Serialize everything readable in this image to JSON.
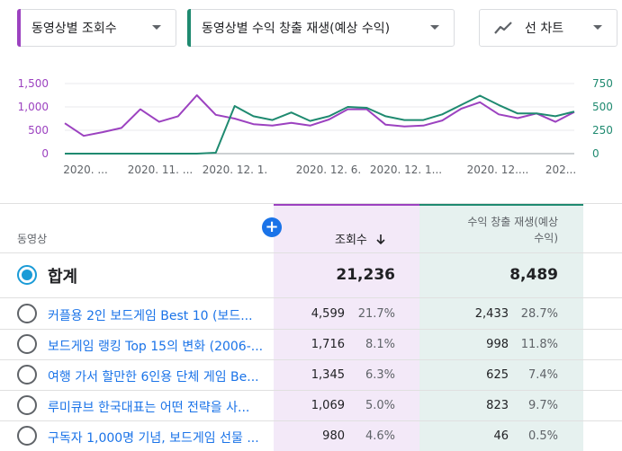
{
  "dropdowns": {
    "metric1": {
      "label": "동영상별 조회수",
      "color": "#9c42c0"
    },
    "metric2": {
      "label": "동영상별 수익 창출 재생(예상 수익)",
      "color": "#1f8a70"
    },
    "chart_type": {
      "label": "선 차트",
      "icon": "line-chart-icon"
    }
  },
  "chart_data": {
    "type": "line",
    "x_tick_labels": [
      "2020. ...",
      "2020. 11. ...",
      "2020. 12. 1.",
      "2020. 12. 6.",
      "2020. 12. 1...",
      "2020. 12....",
      "202..."
    ],
    "y_left_ticks": [
      "1,500",
      "1,000",
      "500",
      "0"
    ],
    "y_right_ticks": [
      "750",
      "500",
      "250",
      "0"
    ],
    "y_left_range": [
      0,
      1500
    ],
    "y_right_range": [
      0,
      750
    ],
    "series": [
      {
        "name": "조회수",
        "axis": "left",
        "color": "#9c42c0",
        "values": [
          650,
          380,
          460,
          550,
          950,
          680,
          800,
          1250,
          830,
          750,
          630,
          600,
          660,
          600,
          730,
          950,
          950,
          620,
          580,
          600,
          710,
          960,
          1100,
          840,
          760,
          860,
          680,
          890
        ]
      },
      {
        "name": "수익 창출 재생",
        "axis": "right",
        "color": "#1f8a70",
        "values": [
          0,
          0,
          0,
          0,
          0,
          0,
          0,
          0,
          10,
          510,
          400,
          360,
          440,
          350,
          400,
          500,
          490,
          400,
          360,
          360,
          420,
          520,
          620,
          520,
          430,
          430,
          400,
          450
        ]
      }
    ]
  },
  "table": {
    "headers": {
      "video": "동영상",
      "views": "조회수",
      "revenue_line1": "수익 창출 재생(예상",
      "revenue_line2": "수익)"
    },
    "total": {
      "label": "합계",
      "views": "21,236",
      "revenue": "8,489"
    },
    "rows": [
      {
        "title": "커플용 2인 보드게임 Best 10 (보드...",
        "views": "4,599",
        "views_pct": "21.7%",
        "revenue": "2,433",
        "revenue_pct": "28.7%"
      },
      {
        "title": "보드게임 랭킹 Top 15의 변화 (2006-...",
        "views": "1,716",
        "views_pct": "8.1%",
        "revenue": "998",
        "revenue_pct": "11.8%"
      },
      {
        "title": "여행 가서 할만한 6인용 단체 게임 Be...",
        "views": "1,345",
        "views_pct": "6.3%",
        "revenue": "625",
        "revenue_pct": "7.4%"
      },
      {
        "title": "루미큐브 한국대표는 어떤 전략을 사...",
        "views": "1,069",
        "views_pct": "5.0%",
        "revenue": "823",
        "revenue_pct": "9.7%"
      },
      {
        "title": "구독자 1,000명 기념, 보드게임 선물 ...",
        "views": "980",
        "views_pct": "4.6%",
        "revenue": "46",
        "revenue_pct": "0.5%"
      }
    ]
  }
}
